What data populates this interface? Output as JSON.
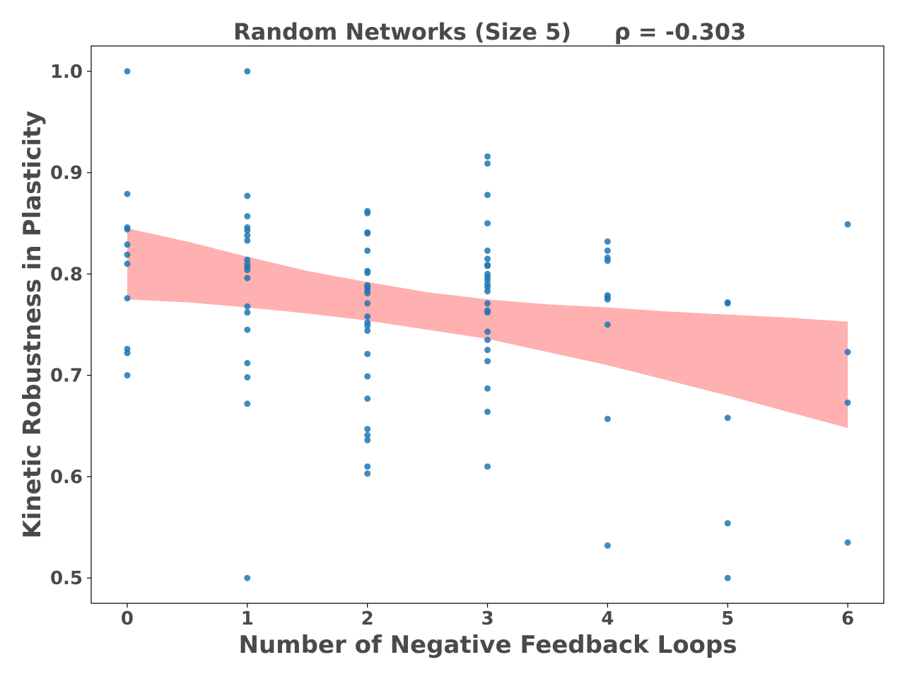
{
  "chart_data": {
    "type": "scatter",
    "title": "Random Networks (Size 5)",
    "annotation": "ρ = -0.303",
    "xlabel": "Number of Negative Feedback Loops",
    "ylabel": "Kinetic Robustness in Plasticity",
    "xlim": [
      -0.3,
      6.3
    ],
    "ylim": [
      0.475,
      1.025
    ],
    "xticks": [
      0,
      1,
      2,
      3,
      4,
      5,
      6
    ],
    "xtick_labels": [
      "0",
      "1",
      "2",
      "3",
      "4",
      "5",
      "6"
    ],
    "yticks": [
      0.5,
      0.6,
      0.7,
      0.8,
      0.9,
      1.0
    ],
    "ytick_labels": [
      "0.5",
      "0.6",
      "0.7",
      "0.8",
      "0.9",
      "1.0"
    ],
    "grid": false,
    "legend": "none",
    "colors": {
      "points": "#1f77b4",
      "band": "#ffb0b0",
      "text": "#4a4a4a",
      "axes": "#000000"
    },
    "points": [
      [
        0,
        1.0
      ],
      [
        0,
        0.879
      ],
      [
        0,
        0.846
      ],
      [
        0,
        0.844
      ],
      [
        0,
        0.829
      ],
      [
        0,
        0.819
      ],
      [
        0,
        0.81
      ],
      [
        0,
        0.776
      ],
      [
        0,
        0.726
      ],
      [
        0,
        0.722
      ],
      [
        0,
        0.7
      ],
      [
        1,
        1.0
      ],
      [
        1,
        0.877
      ],
      [
        1,
        0.857
      ],
      [
        1,
        0.846
      ],
      [
        1,
        0.843
      ],
      [
        1,
        0.838
      ],
      [
        1,
        0.833
      ],
      [
        1,
        0.814
      ],
      [
        1,
        0.81
      ],
      [
        1,
        0.807
      ],
      [
        1,
        0.804
      ],
      [
        1,
        0.796
      ],
      [
        1,
        0.768
      ],
      [
        1,
        0.762
      ],
      [
        1,
        0.745
      ],
      [
        1,
        0.712
      ],
      [
        1,
        0.698
      ],
      [
        1,
        0.672
      ],
      [
        1,
        0.5
      ],
      [
        2,
        0.862
      ],
      [
        2,
        0.86
      ],
      [
        2,
        0.841
      ],
      [
        2,
        0.84
      ],
      [
        2,
        0.823
      ],
      [
        2,
        0.803
      ],
      [
        2,
        0.801
      ],
      [
        2,
        0.789
      ],
      [
        2,
        0.787
      ],
      [
        2,
        0.784
      ],
      [
        2,
        0.781
      ],
      [
        2,
        0.771
      ],
      [
        2,
        0.758
      ],
      [
        2,
        0.752
      ],
      [
        2,
        0.749
      ],
      [
        2,
        0.744
      ],
      [
        2,
        0.721
      ],
      [
        2,
        0.699
      ],
      [
        2,
        0.677
      ],
      [
        2,
        0.647
      ],
      [
        2,
        0.641
      ],
      [
        2,
        0.636
      ],
      [
        2,
        0.61
      ],
      [
        2,
        0.603
      ],
      [
        3,
        0.916
      ],
      [
        3,
        0.909
      ],
      [
        3,
        0.878
      ],
      [
        3,
        0.85
      ],
      [
        3,
        0.823
      ],
      [
        3,
        0.815
      ],
      [
        3,
        0.809
      ],
      [
        3,
        0.808
      ],
      [
        3,
        0.8
      ],
      [
        3,
        0.797
      ],
      [
        3,
        0.794
      ],
      [
        3,
        0.79
      ],
      [
        3,
        0.787
      ],
      [
        3,
        0.783
      ],
      [
        3,
        0.771
      ],
      [
        3,
        0.764
      ],
      [
        3,
        0.762
      ],
      [
        3,
        0.743
      ],
      [
        3,
        0.735
      ],
      [
        3,
        0.725
      ],
      [
        3,
        0.714
      ],
      [
        3,
        0.687
      ],
      [
        3,
        0.664
      ],
      [
        3,
        0.61
      ],
      [
        4,
        0.832
      ],
      [
        4,
        0.823
      ],
      [
        4,
        0.816
      ],
      [
        4,
        0.813
      ],
      [
        4,
        0.779
      ],
      [
        4,
        0.777
      ],
      [
        4,
        0.775
      ],
      [
        4,
        0.75
      ],
      [
        4,
        0.657
      ],
      [
        4,
        0.532
      ],
      [
        5,
        0.772
      ],
      [
        5,
        0.771
      ],
      [
        5,
        0.658
      ],
      [
        5,
        0.554
      ],
      [
        5,
        0.5
      ],
      [
        6,
        0.849
      ],
      [
        6,
        0.723
      ],
      [
        6,
        0.673
      ],
      [
        6,
        0.535
      ]
    ],
    "confidence_band": {
      "x": [
        0,
        0.5,
        1,
        1.5,
        2,
        2.5,
        3,
        3.5,
        4,
        4.5,
        5,
        5.5,
        6
      ],
      "upper": [
        0.845,
        0.832,
        0.817,
        0.803,
        0.792,
        0.782,
        0.775,
        0.77,
        0.767,
        0.763,
        0.76,
        0.757,
        0.753
      ],
      "lower": [
        0.775,
        0.772,
        0.767,
        0.761,
        0.754,
        0.745,
        0.736,
        0.723,
        0.71,
        0.695,
        0.68,
        0.664,
        0.648
      ]
    }
  }
}
